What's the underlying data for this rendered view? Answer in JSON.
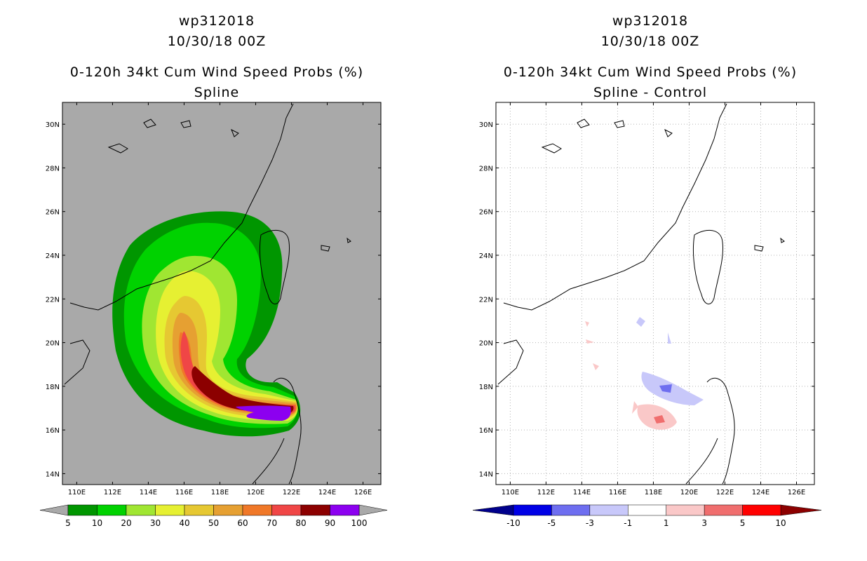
{
  "panels": [
    {
      "id": "left",
      "title_line1": "wp312018",
      "title_line2": "10/30/18 00Z",
      "title_line3": "0-120h 34kt Cum Wind Speed Probs (%)",
      "title_line4": "Spline",
      "chart_data": {
        "type": "heatmap",
        "variable": "0-120h 34kt cumulative wind speed probability (%)",
        "x_axis": {
          "range": [
            109.2,
            127.0
          ],
          "ticks": [
            "110E",
            "112E",
            "114E",
            "116E",
            "118E",
            "120E",
            "122E",
            "124E",
            "126E"
          ]
        },
        "y_axis": {
          "range": [
            13.5,
            31.0
          ],
          "ticks": [
            "14N",
            "16N",
            "18N",
            "20N",
            "22N",
            "24N",
            "26N",
            "28N",
            "30N"
          ]
        },
        "background_color": "#a9a9a9",
        "colorbar": {
          "labels": [
            "5",
            "10",
            "20",
            "30",
            "40",
            "50",
            "60",
            "70",
            "80",
            "90",
            "100"
          ],
          "colors": [
            "#009600",
            "#00d200",
            "#a0e632",
            "#e6f032",
            "#e6c832",
            "#e6a032",
            "#f07828",
            "#f04646",
            "#8c0000",
            "#8c00f0"
          ],
          "extend_colors": [
            "#a9a9a9",
            "#a9a9a9"
          ]
        },
        "max_region": "near 121E, 17N (>90%)"
      }
    },
    {
      "id": "right",
      "title_line1": "wp312018",
      "title_line2": "10/30/18 00Z",
      "title_line3": "0-120h 34kt Cum Wind Speed Probs (%)",
      "title_line4": "Spline - Control",
      "chart_data": {
        "type": "heatmap",
        "variable": "difference Spline - Control (%)",
        "x_axis": {
          "range": [
            109.2,
            127.0
          ],
          "ticks": [
            "110E",
            "112E",
            "114E",
            "116E",
            "118E",
            "120E",
            "122E",
            "124E",
            "126E"
          ]
        },
        "y_axis": {
          "range": [
            13.5,
            31.0
          ],
          "ticks": [
            "14N",
            "16N",
            "18N",
            "20N",
            "22N",
            "24N",
            "26N",
            "28N",
            "30N"
          ]
        },
        "gridlines": true,
        "background_color": "#ffffff",
        "colorbar": {
          "labels": [
            "-10",
            "-5",
            "-3",
            "-1",
            "1",
            "3",
            "5",
            "10"
          ],
          "colors": [
            "#0000e6",
            "#6e6ef0",
            "#c8c8fa",
            "#ffffff",
            "#fac8c8",
            "#f06e6e",
            "#ff0000"
          ],
          "extend_colors": [
            "#00008c",
            "#8c0000"
          ]
        },
        "features": "small negative patch near 118.5E, 17.8N; small positive patch near 118.5E, 16.5N"
      }
    }
  ]
}
